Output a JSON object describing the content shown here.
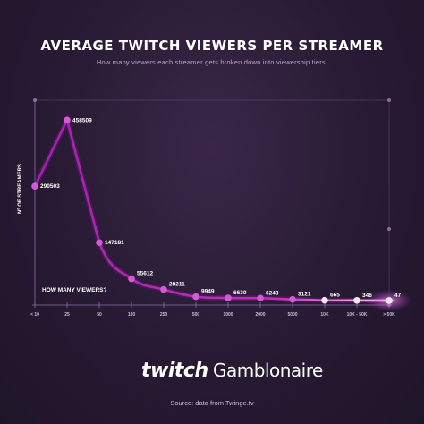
{
  "header": {
    "title": "AVERAGE TWITCH VIEWERS PER STREAMER",
    "subtitle": "How many viewers each streamer gets broken down into viewership tiers."
  },
  "logos": {
    "left": "twitch",
    "right": "Gamblonaire"
  },
  "footer": {
    "source": "Source: data from Twinge.tv"
  },
  "colors": {
    "line": "#c12fc4",
    "line_end": "#f4c8f4",
    "point": "#d25ad4",
    "axis": "#8b6fa0",
    "background": "#271a33"
  },
  "chart_data": {
    "type": "line",
    "title": "AVERAGE TWITCH VIEWERS PER STREAMER",
    "ylabel": "Nº OF STREAMERS",
    "xlabel": "HOW MANY VIEWERS?",
    "categories": [
      "< 10",
      "25",
      "50",
      "100",
      "250",
      "500",
      "1000",
      "2000",
      "5000",
      "10K",
      "10K - 50K",
      "> 50K"
    ],
    "series": [
      {
        "values": [
          290503,
          458509,
          147181,
          55612,
          28211,
          9949,
          6630,
          6243,
          3121,
          665,
          346,
          47
        ]
      }
    ],
    "data_labels": [
      "290503",
      "458509",
      "147181",
      "55612",
      "28211",
      "9949",
      "6630",
      "6243",
      "3121",
      "665",
      "346",
      "47"
    ],
    "ylim": [
      0,
      500000
    ],
    "grid": false
  }
}
